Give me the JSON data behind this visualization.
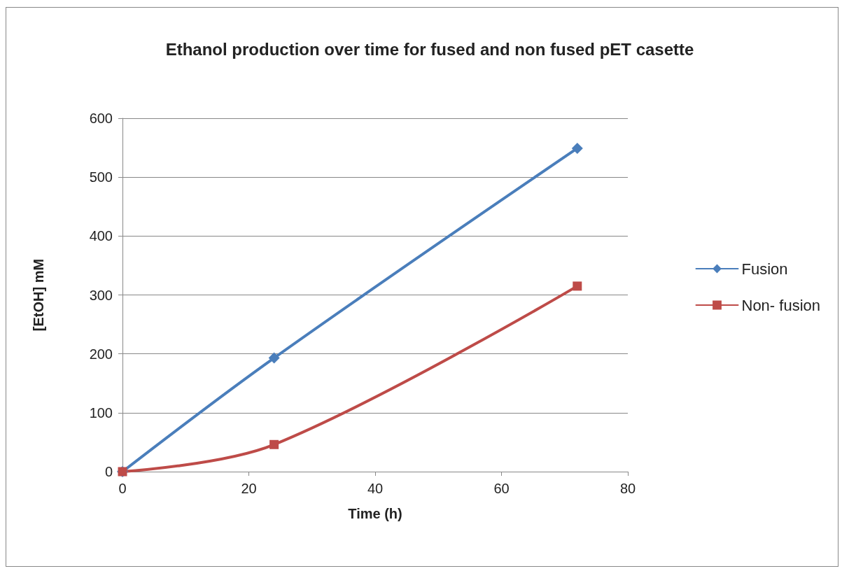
{
  "chart_data": {
    "type": "line",
    "title": "Ethanol production over time for fused and non fused pET casette",
    "xlabel": "Time (h)",
    "ylabel": "[EtOH] mM",
    "x": [
      0,
      24,
      72
    ],
    "xlim": [
      0,
      80
    ],
    "xticks": [
      0,
      20,
      40,
      60,
      80
    ],
    "ylim": [
      0,
      600
    ],
    "yticks": [
      0,
      100,
      200,
      300,
      400,
      500,
      600
    ],
    "grid": "y",
    "legend": "right",
    "line_style": "solid",
    "series": [
      {
        "name": "Fusion",
        "color": "#4a7ebb",
        "marker": "diamond",
        "values": [
          0,
          193,
          549
        ]
      },
      {
        "name": "Non- fusion",
        "color": "#be4b48",
        "marker": "square",
        "values": [
          0,
          46,
          315
        ]
      }
    ]
  }
}
